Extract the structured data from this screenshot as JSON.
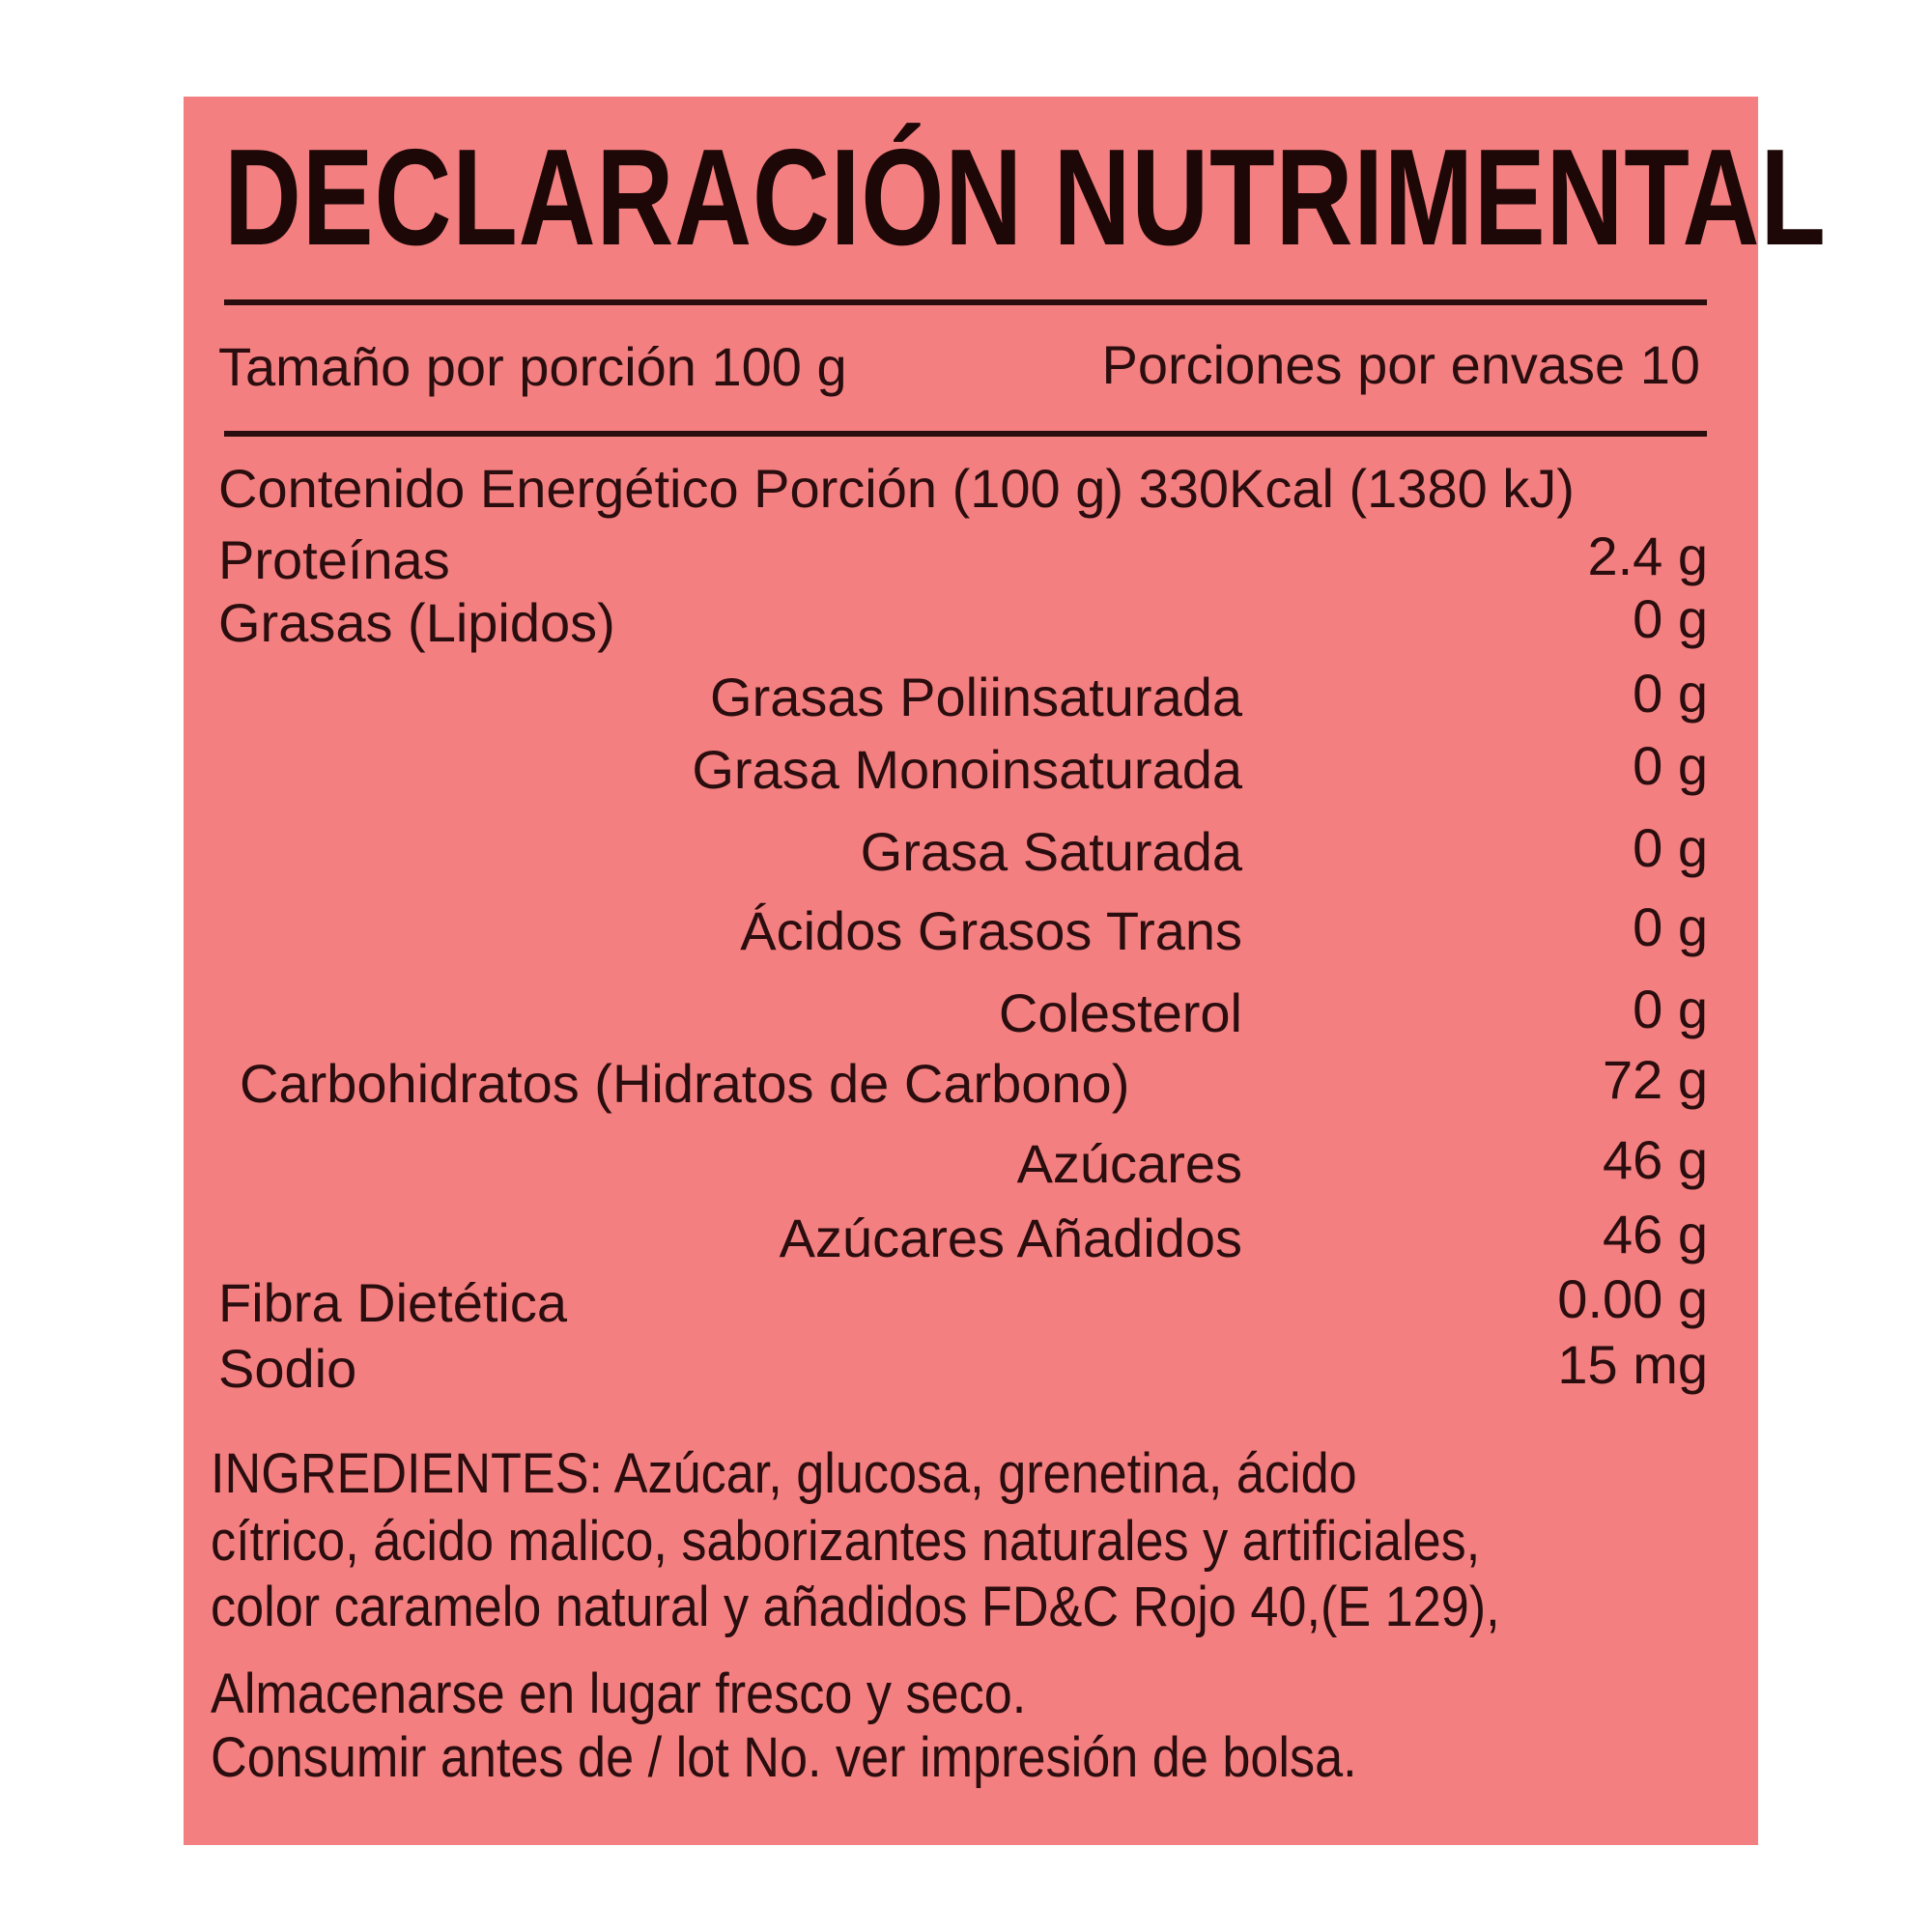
{
  "title": "DECLARACIÓN NUTRIMENTAL",
  "serving_size": "Tamaño por porción 100 g",
  "servings_per_container": "Porciones por envase 10",
  "energy": "Contenido Energético Porción (100 g) 330Kcal (1380 kJ)",
  "nutrients": [
    {
      "label": "Proteínas",
      "value": "2.4 g",
      "indent": false
    },
    {
      "label": "Grasas (Lipidos)",
      "value": "0 g",
      "indent": false
    },
    {
      "label": "Grasas Poliinsaturada",
      "value": "0 g",
      "indent": true
    },
    {
      "label": "Grasa Monoinsaturada",
      "value": "0 g",
      "indent": true
    },
    {
      "label": "Grasa Saturada",
      "value": "0 g",
      "indent": true
    },
    {
      "label": "Ácidos Grasos Trans",
      "value": "0 g",
      "indent": true
    },
    {
      "label": "Colesterol",
      "value": "0 g",
      "indent": true
    },
    {
      "label": "Carbohidratos (Hidratos de Carbono)",
      "value": "72 g",
      "indent": true
    },
    {
      "label": "Azúcares",
      "value": "46 g",
      "indent": true
    },
    {
      "label": "Azúcares Añadidos",
      "value": "46 g",
      "indent": true
    },
    {
      "label": "Fibra Dietética",
      "value": "0.00 g",
      "indent": false
    },
    {
      "label": "Sodio",
      "value": "15 mg",
      "indent": false
    }
  ],
  "ingredients_lines": [
    "INGREDIENTES: Azúcar,  glucosa,  grenetina,  ácido",
    "cítrico, ácido malico, saborizantes naturales y artificiales,",
    "color caramelo natural y añadidos FD&C Rojo 40,(E 129),"
  ],
  "storage": "Almacenarse en lugar fresco y seco.",
  "best_before": "Consumir antes de / lot No. ver impresión de bolsa.",
  "colors": {
    "background": "#f47f80",
    "text": "#2a0d0e"
  }
}
